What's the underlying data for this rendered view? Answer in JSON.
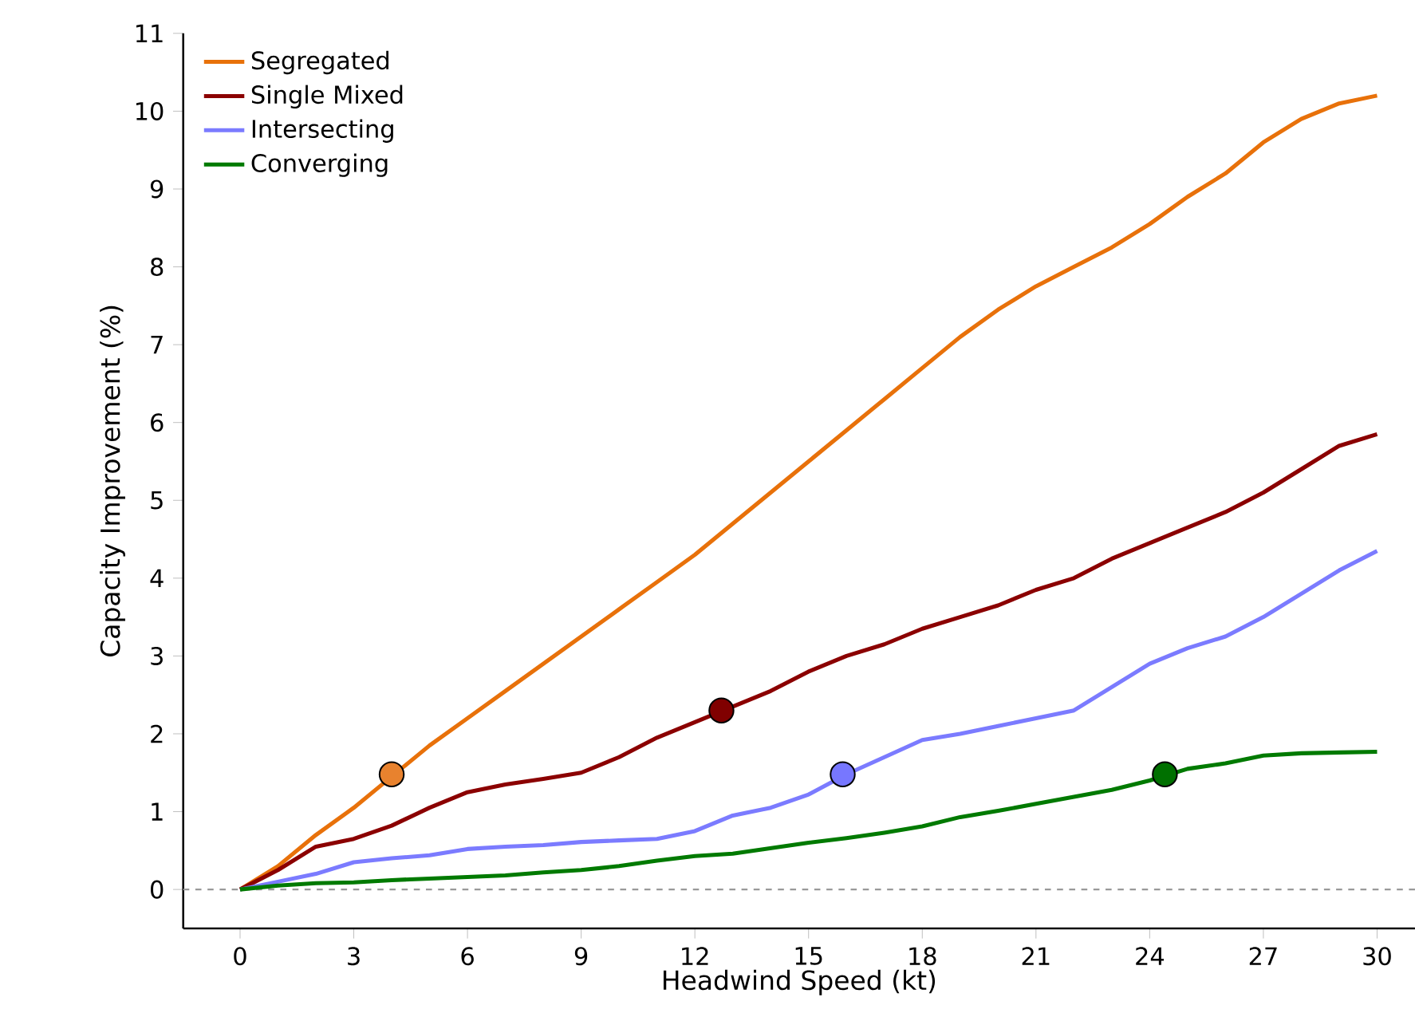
{
  "chart_data": {
    "type": "line",
    "xlabel": "Headwind Speed (kt)",
    "ylabel": "Capacity Improvement (%)",
    "x": [
      0,
      1,
      2,
      3,
      4,
      5,
      6,
      7,
      8,
      9,
      10,
      11,
      12,
      13,
      14,
      15,
      16,
      17,
      18,
      19,
      20,
      21,
      22,
      23,
      24,
      25,
      26,
      27,
      28,
      29,
      30
    ],
    "series": [
      {
        "name": "Segregated",
        "color": "#e8710a",
        "values": [
          0,
          0.3,
          0.7,
          1.05,
          1.45,
          1.85,
          2.2,
          2.55,
          2.9,
          3.25,
          3.6,
          3.95,
          4.3,
          4.7,
          5.1,
          5.5,
          5.9,
          6.3,
          6.7,
          7.1,
          7.45,
          7.75,
          8.0,
          8.25,
          8.55,
          8.9,
          9.2,
          9.6,
          9.9,
          10.1,
          10.2
        ]
      },
      {
        "name": "Single Mixed",
        "color": "#8b0000",
        "values": [
          0,
          0.25,
          0.55,
          0.65,
          0.82,
          1.05,
          1.25,
          1.35,
          1.42,
          1.5,
          1.7,
          1.95,
          2.15,
          2.35,
          2.55,
          2.8,
          3.0,
          3.15,
          3.35,
          3.5,
          3.65,
          3.85,
          4.0,
          4.25,
          4.45,
          4.65,
          4.85,
          5.1,
          5.4,
          5.7,
          5.85
        ]
      },
      {
        "name": "Intersecting",
        "color": "#7b7bff",
        "values": [
          0,
          0.1,
          0.2,
          0.35,
          0.4,
          0.44,
          0.52,
          0.55,
          0.57,
          0.61,
          0.63,
          0.65,
          0.75,
          0.95,
          1.05,
          1.22,
          1.48,
          1.7,
          1.92,
          2.0,
          2.1,
          2.2,
          2.3,
          2.6,
          2.9,
          3.1,
          3.25,
          3.5,
          3.8,
          4.1,
          4.35
        ]
      },
      {
        "name": "Converging",
        "color": "#007a00",
        "values": [
          0,
          0.05,
          0.08,
          0.09,
          0.12,
          0.14,
          0.16,
          0.18,
          0.22,
          0.25,
          0.3,
          0.37,
          0.43,
          0.46,
          0.53,
          0.6,
          0.66,
          0.73,
          0.81,
          0.93,
          1.01,
          1.1,
          1.19,
          1.28,
          1.4,
          1.55,
          1.62,
          1.72,
          1.75,
          1.76,
          1.77
        ]
      },
      {
        "type": "scatter",
        "x": [
          4.0,
          12.7,
          15.9,
          24.4
        ],
        "values": [
          1.48,
          2.3,
          1.48,
          1.48
        ],
        "colors": [
          "#e8822e",
          "#800000",
          "#7777ff",
          "#007000"
        ]
      }
    ],
    "xlim": [
      -1.5,
      31
    ],
    "ylim": [
      -0.5,
      11
    ],
    "xticks": [
      0,
      3,
      6,
      9,
      12,
      15,
      18,
      21,
      24,
      27,
      30
    ],
    "yticks": [
      0,
      1,
      2,
      3,
      4,
      5,
      6,
      7,
      8,
      9,
      10,
      11
    ],
    "ref_lines": [
      {
        "axis": "y",
        "value": 0,
        "color": "#999999",
        "line_style": "dashed"
      }
    ],
    "legend": "top left",
    "grid": false,
    "line_style": "solid"
  }
}
